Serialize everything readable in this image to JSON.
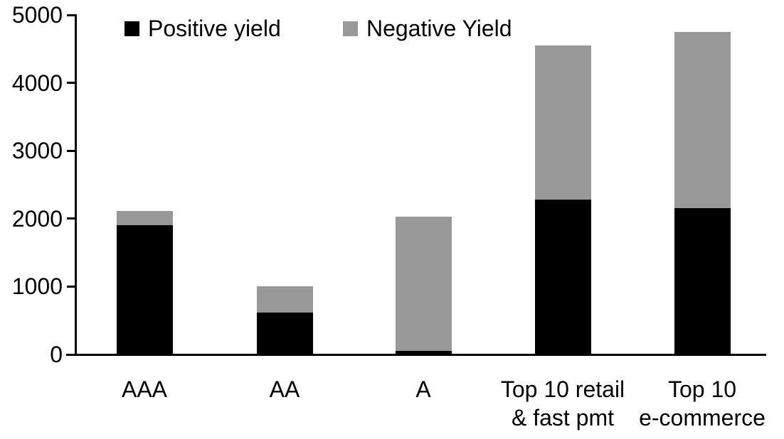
{
  "chart_data": {
    "type": "bar",
    "stacked": true,
    "title": "",
    "xlabel": "",
    "ylabel": "",
    "categories": [
      "AAA",
      "AA",
      "A",
      "Top 10 retail\n& fast pmt",
      "Top 10\ne-commerce"
    ],
    "series": [
      {
        "name": "Positive yield",
        "color": "#000000",
        "values": [
          1900,
          620,
          50,
          2280,
          2150
        ]
      },
      {
        "name": "Negative Yield",
        "color": "#999999",
        "values": [
          210,
          380,
          1980,
          2270,
          2600
        ]
      }
    ],
    "ylim": [
      0,
      5000
    ],
    "yticks": [
      0,
      1000,
      2000,
      3000,
      4000,
      5000
    ],
    "grid": false,
    "legend_position": "top-left",
    "axis_color": "#000000",
    "background_color": "#ffffff"
  }
}
